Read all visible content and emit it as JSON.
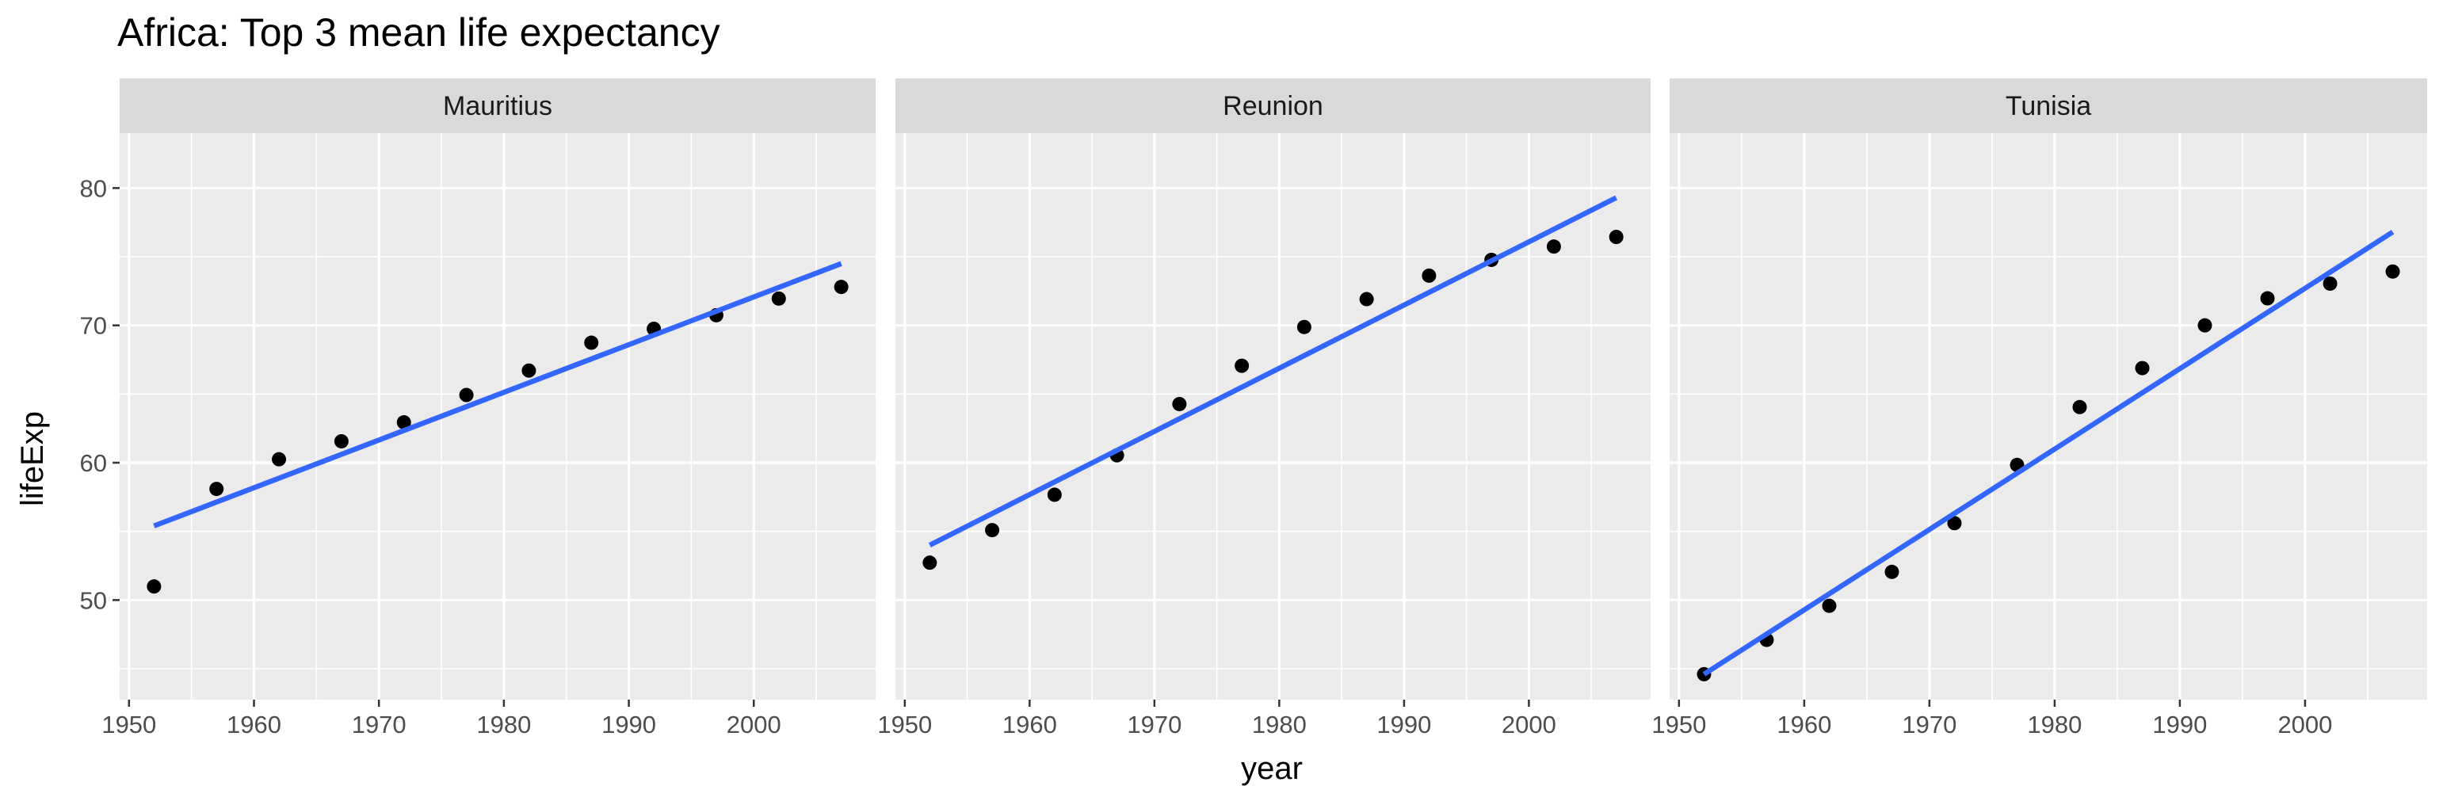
{
  "chart_data": {
    "type": "scatter",
    "title": "Africa: Top 3 mean life expectancy",
    "xlabel": "year",
    "ylabel": "lifeExp",
    "xlim": [
      1949.25,
      2009.75
    ],
    "ylim": [
      42.75,
      84.0
    ],
    "xticks": [
      1950,
      1960,
      1970,
      1980,
      1990,
      2000
    ],
    "yticks": [
      50,
      60,
      70,
      80
    ],
    "grid": true,
    "colors": {
      "panel_bg": "#EBEBEB",
      "strip_bg": "#D9D9D9",
      "grid": "#FFFFFF",
      "point": "#000000",
      "fit_line": "#3366FF"
    },
    "facets": [
      {
        "name": "Mauritius",
        "x": [
          1952,
          1957,
          1962,
          1967,
          1972,
          1977,
          1982,
          1987,
          1992,
          1997,
          2002,
          2007
        ],
        "y": [
          50.99,
          58.09,
          60.25,
          61.56,
          62.94,
          64.93,
          66.71,
          68.74,
          69.75,
          70.74,
          71.95,
          72.8
        ],
        "fit": {
          "x": [
            1952,
            2007
          ],
          "y": [
            55.4,
            74.5
          ]
        }
      },
      {
        "name": "Reunion",
        "x": [
          1952,
          1957,
          1962,
          1967,
          1972,
          1977,
          1982,
          1987,
          1992,
          1997,
          2002,
          2007
        ],
        "y": [
          52.72,
          55.09,
          57.67,
          60.54,
          64.27,
          67.06,
          69.88,
          71.91,
          73.62,
          74.77,
          75.74,
          76.44
        ],
        "fit": {
          "x": [
            1952,
            2007
          ],
          "y": [
            54.0,
            79.3
          ]
        }
      },
      {
        "name": "Tunisia",
        "x": [
          1952,
          1957,
          1962,
          1967,
          1972,
          1977,
          1982,
          1987,
          1992,
          1997,
          2002,
          2007
        ],
        "y": [
          44.6,
          47.1,
          49.58,
          52.05,
          55.6,
          59.84,
          64.05,
          66.89,
          70.0,
          71.97,
          73.04,
          73.92
        ],
        "fit": {
          "x": [
            1952,
            2007
          ],
          "y": [
            44.6,
            76.8
          ]
        }
      }
    ]
  }
}
